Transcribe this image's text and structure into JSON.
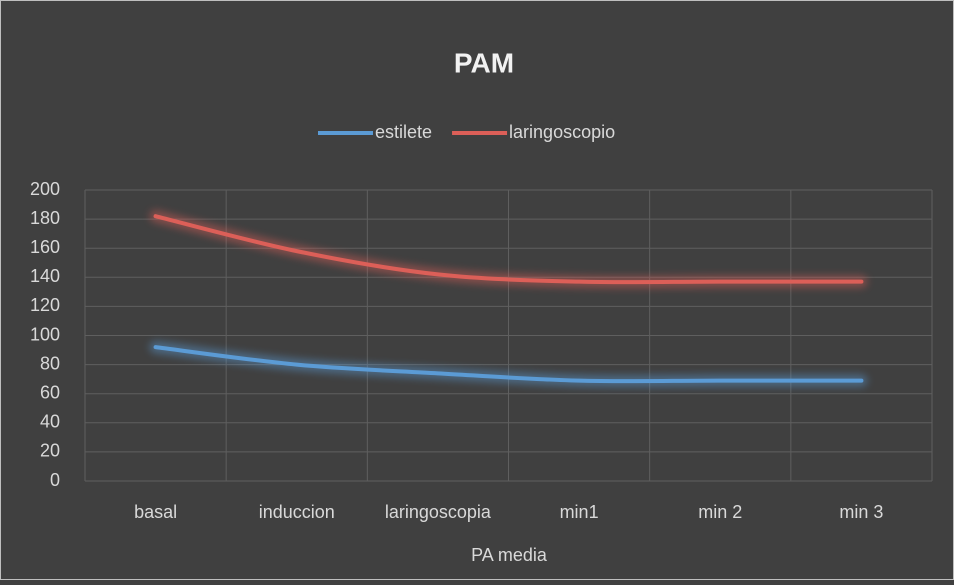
{
  "chart_data": {
    "type": "line",
    "title": "PAM",
    "x_label": "PA media",
    "categories": [
      "basal",
      "induccion",
      "laringoscopia",
      "min1",
      "min 2",
      "min 3"
    ],
    "series": [
      {
        "name": "estilete",
        "color": "#5b9bd5",
        "values": [
          92,
          80,
          74,
          69,
          69,
          69
        ]
      },
      {
        "name": "laringoscopio",
        "color": "#dc5f58",
        "values": [
          182,
          158,
          142,
          137,
          137,
          137
        ]
      }
    ],
    "ylim": [
      0,
      200
    ],
    "yticks": [
      0,
      20,
      40,
      60,
      80,
      100,
      120,
      140,
      160,
      180,
      200
    ],
    "grid": true,
    "legend": "top"
  }
}
